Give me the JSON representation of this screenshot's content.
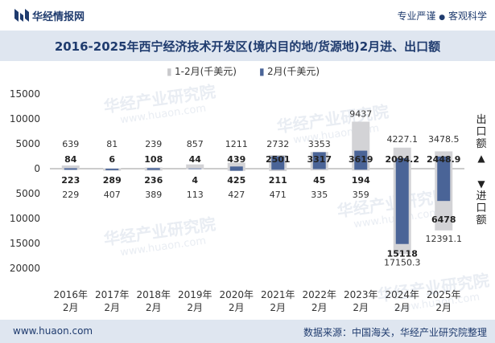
{
  "header": {
    "brand": "华经情报网",
    "slogan_left": "专业严谨",
    "slogan_sep": "●",
    "slogan_right": "客观科学"
  },
  "title": "2016-2025年西宁经济技术开发区(境内目的地/货源地)2月进、出口额",
  "footer": {
    "url": "www.huaon.com",
    "source": "数据来源：中国海关，华经产业研究院整理"
  },
  "watermark": {
    "cn": "华经产业研究院",
    "en": "www.huaon.com"
  },
  "colors": {
    "cumulative_bar": "#d3d3d6",
    "month_bar": "#4a6497",
    "brand": "#1f3b6e",
    "header_bg": "#dfe6f0"
  },
  "chart_data": {
    "type": "bar",
    "unit": "千美元",
    "legend": [
      "1-2月(千美元)",
      "2月(千美元)"
    ],
    "legend_position": "top",
    "categories": [
      "2016年\n2月",
      "2017年\n2月",
      "2018年\n2月",
      "2019年\n2月",
      "2020年\n2月",
      "2021年\n2月",
      "2022年\n2月",
      "2023年\n2月",
      "2024年\n2月",
      "2025年\n2月"
    ],
    "ylim": [
      -20000,
      15000
    ],
    "yticks": [
      15000,
      10000,
      5000,
      0,
      -5000,
      -10000,
      -15000,
      -20000
    ],
    "ytick_labels": [
      "15000",
      "10000",
      "5000",
      "0",
      "5000",
      "10000",
      "15000",
      "20000"
    ],
    "y_axis_top_label": "出口额",
    "y_axis_bottom_label": "进口额",
    "y_axis_top_arrow": "▲",
    "y_axis_bottom_arrow": "▼",
    "series": [
      {
        "name": "1-2月(千美元)",
        "direction": "export",
        "values": [
          639,
          81,
          239,
          857,
          1211,
          2732,
          3353,
          9437,
          4227.1,
          3478.5
        ],
        "labels": [
          "639",
          "81",
          "239",
          "857",
          "1211",
          "2732",
          "3353",
          "9437",
          "4227.1",
          "3478.5"
        ]
      },
      {
        "name": "2月(千美元)",
        "direction": "export",
        "values": [
          84,
          6,
          108,
          44,
          439,
          2501,
          3317,
          3619,
          2094.2,
          2448.9
        ],
        "labels": [
          "84",
          "6",
          "108",
          "44",
          "439",
          "2501",
          "3317",
          "3619",
          "2094.2",
          "2448.9"
        ]
      },
      {
        "name": "1-2月(千美元)",
        "direction": "import",
        "values": [
          229,
          407,
          389,
          113,
          427,
          471,
          335,
          359,
          17150.3,
          12391.1
        ],
        "labels": [
          "229",
          "407",
          "389",
          "113",
          "427",
          "471",
          "335",
          "359",
          "17150.3",
          "12391.1"
        ]
      },
      {
        "name": "2月(千美元)",
        "direction": "import",
        "values": [
          223,
          289,
          236,
          4,
          425,
          211,
          45,
          194,
          15118,
          6478
        ],
        "labels": [
          "223",
          "289",
          "236",
          "4",
          "425",
          "211",
          "45",
          "194",
          "15118",
          "6478"
        ]
      }
    ],
    "grid": false
  }
}
